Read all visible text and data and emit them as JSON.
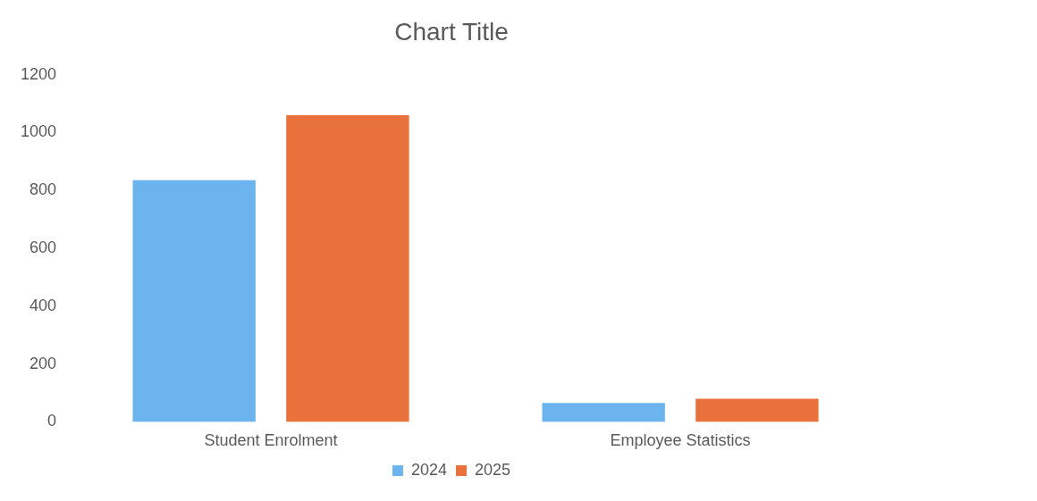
{
  "chart_data": {
    "type": "bar",
    "title": "Chart Title",
    "categories": [
      "Student Enrolment",
      "Employee Statistics"
    ],
    "series": [
      {
        "name": "2024",
        "color": "#6cb4ee",
        "values": [
          835,
          65
        ]
      },
      {
        "name": "2025",
        "color": "#e8713c",
        "values": [
          1060,
          80
        ]
      }
    ],
    "ylim": [
      0,
      1200
    ],
    "yticks": [
      0,
      200,
      400,
      600,
      800,
      1000,
      1200
    ],
    "legend": "bottom"
  }
}
